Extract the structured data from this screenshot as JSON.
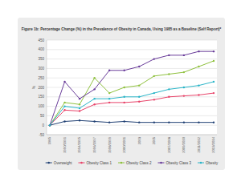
{
  "chart_data": {
    "type": "line",
    "title": "Figure 1b: Percentage Change (%) in the Prevalence of Obesity in Canada, Using 1985 as a Baseline (Self Report)*",
    "y_label": "%",
    "categories": [
      "1985",
      "1990/1991",
      "1994/1995",
      "1996/1997",
      "1998/1999",
      "2000/2001",
      "2003",
      "2005",
      "2007/2008",
      "2009/2010",
      "2011/2012",
      "2013/2014"
    ],
    "series": [
      {
        "name": "Overweight",
        "color": "#1f3f73",
        "values": [
          0,
          20,
          25,
          20,
          15,
          20,
          15,
          15,
          15,
          15,
          15,
          15
        ]
      },
      {
        "name": "Obesity Class 1",
        "color": "#e8446a",
        "values": [
          0,
          80,
          75,
          110,
          120,
          120,
          125,
          135,
          150,
          155,
          160,
          170
        ]
      },
      {
        "name": "Obesity Class 2",
        "color": "#8fc13e",
        "values": [
          0,
          120,
          110,
          250,
          170,
          200,
          210,
          260,
          270,
          280,
          310,
          340
        ]
      },
      {
        "name": "Obesity Class 3",
        "color": "#6a3d9a",
        "values": [
          0,
          230,
          140,
          190,
          290,
          290,
          310,
          350,
          370,
          370,
          390,
          390
        ]
      },
      {
        "name": "Obesity",
        "color": "#2ab5c8",
        "values": [
          0,
          100,
          90,
          140,
          140,
          150,
          150,
          170,
          190,
          200,
          210,
          230
        ]
      }
    ],
    "ylim": [
      -50,
      450
    ],
    "yticks": [
      -50,
      0,
      50,
      100,
      150,
      200,
      250,
      300,
      350,
      400,
      450
    ],
    "grid": true,
    "marker": "circle",
    "legend": "bottom"
  }
}
